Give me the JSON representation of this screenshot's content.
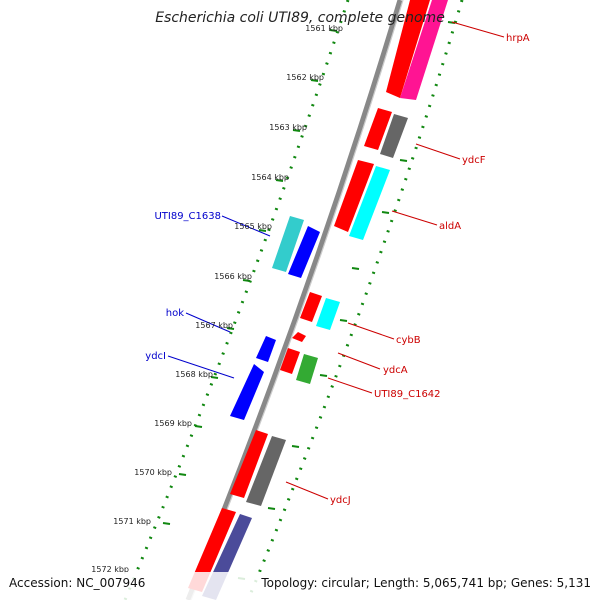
{
  "title": "Escherichia coli UTI89, complete genome",
  "footer": {
    "accession": "Accession: NC_007946",
    "summary": "Topology: circular; Length: 5,065,741 bp; Genes: 5,131"
  },
  "ticks": [
    "1561 kbp",
    "1562 kbp",
    "1563 kbp",
    "1564 kbp",
    "1565 kbp",
    "1566 kbp",
    "1567 kbp",
    "1568 kbp",
    "1569 kbp",
    "1570 kbp",
    "1571 kbp",
    "1572 kbp"
  ],
  "labels": {
    "hrpA": "hrpA",
    "ydcF": "ydcF",
    "aldA": "aldA",
    "cybB": "cybB",
    "ydcA": "ydcA",
    "uti1642": "UTI89_C1642",
    "ydcJ": "ydcJ",
    "uti1638": "UTI89_C1638",
    "hok": "hok",
    "ydcI": "ydcI"
  },
  "colors": {
    "cds": "#ff0000",
    "gene_grey": "#666666",
    "cyan": "#00ffff",
    "teal": "#33cccc",
    "blue": "#0000ff",
    "magenta": "#ff1493",
    "green": "#33aa33",
    "slate": "#4b4b9a",
    "backbone": "#888888",
    "gc_dots": "#118811",
    "label_forward": "#cc0000",
    "label_reverse": "#0000cc"
  }
}
